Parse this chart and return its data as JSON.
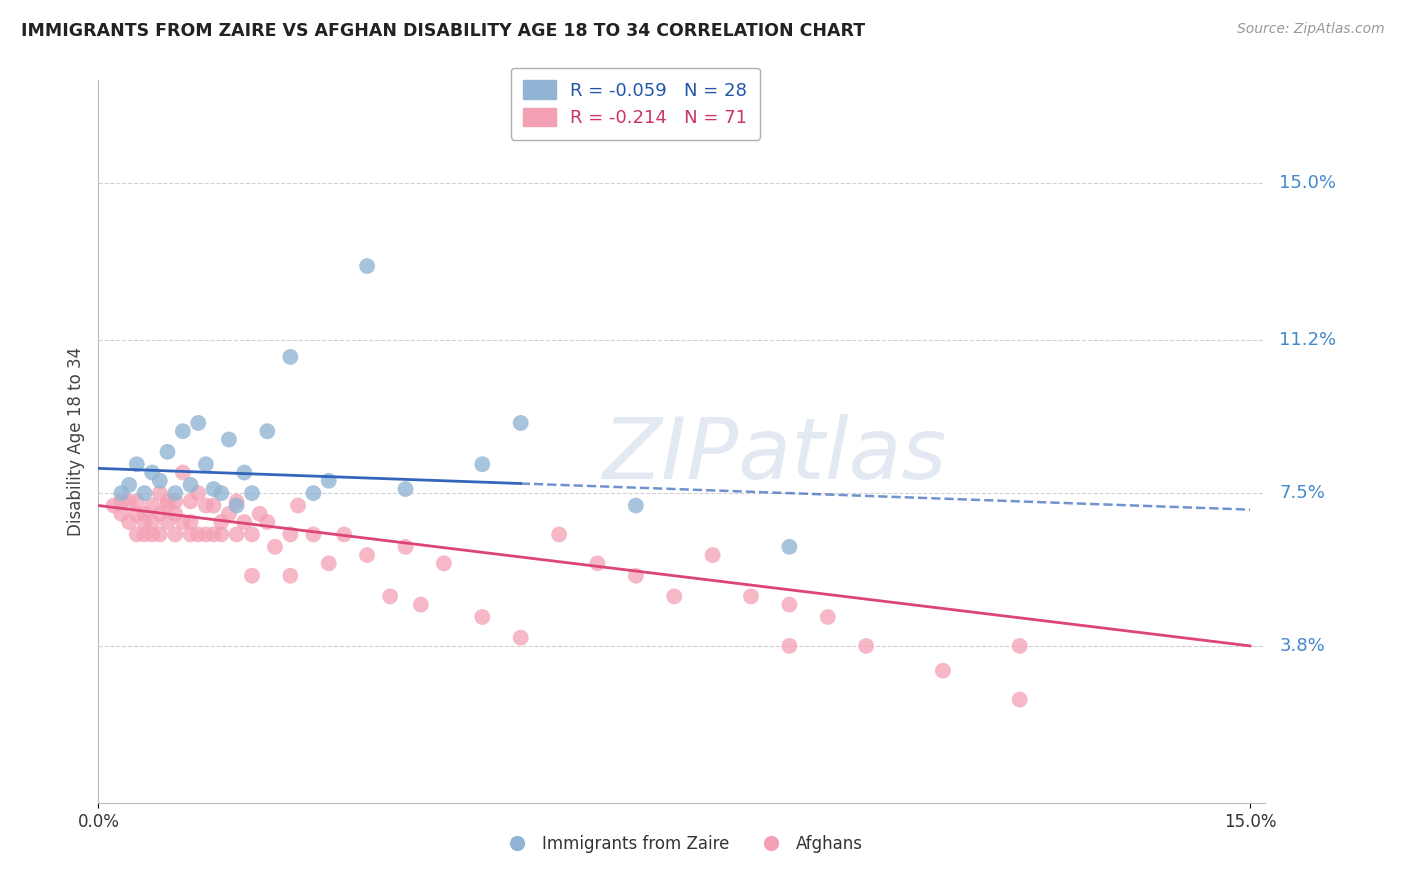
{
  "title": "IMMIGRANTS FROM ZAIRE VS AFGHAN DISABILITY AGE 18 TO 34 CORRELATION CHART",
  "source": "Source: ZipAtlas.com",
  "ylabel": "Disability Age 18 to 34",
  "ytick_values": [
    0.15,
    0.112,
    0.075,
    0.038
  ],
  "ytick_labels": [
    "15.0%",
    "11.2%",
    "7.5%",
    "3.8%"
  ],
  "xlim": [
    0.0,
    0.15
  ],
  "ylim": [
    0.0,
    0.175
  ],
  "zaire_color": "#92b4d4",
  "afghan_color": "#f4a0b4",
  "zaire_line_color": "#3366bb",
  "afghan_line_color": "#dd4477",
  "zaire_line_solid_end": 0.055,
  "watermark_text": "ZIPatlas",
  "zaire_x": [
    0.003,
    0.004,
    0.005,
    0.006,
    0.007,
    0.008,
    0.009,
    0.01,
    0.011,
    0.012,
    0.013,
    0.014,
    0.015,
    0.016,
    0.017,
    0.018,
    0.019,
    0.02,
    0.022,
    0.025,
    0.028,
    0.03,
    0.035,
    0.04,
    0.05,
    0.055,
    0.07,
    0.09
  ],
  "zaire_y": [
    0.075,
    0.077,
    0.082,
    0.075,
    0.08,
    0.078,
    0.085,
    0.075,
    0.09,
    0.077,
    0.092,
    0.082,
    0.076,
    0.075,
    0.088,
    0.072,
    0.08,
    0.075,
    0.09,
    0.108,
    0.075,
    0.078,
    0.13,
    0.076,
    0.082,
    0.092,
    0.072,
    0.062
  ],
  "afghan_x": [
    0.002,
    0.003,
    0.003,
    0.004,
    0.004,
    0.005,
    0.005,
    0.005,
    0.006,
    0.006,
    0.006,
    0.007,
    0.007,
    0.007,
    0.008,
    0.008,
    0.008,
    0.009,
    0.009,
    0.009,
    0.01,
    0.01,
    0.01,
    0.011,
    0.011,
    0.012,
    0.012,
    0.012,
    0.013,
    0.013,
    0.014,
    0.014,
    0.015,
    0.015,
    0.016,
    0.016,
    0.017,
    0.018,
    0.018,
    0.019,
    0.02,
    0.02,
    0.021,
    0.022,
    0.023,
    0.025,
    0.025,
    0.026,
    0.028,
    0.03,
    0.032,
    0.035,
    0.038,
    0.04,
    0.042,
    0.045,
    0.05,
    0.055,
    0.06,
    0.065,
    0.07,
    0.075,
    0.08,
    0.085,
    0.09,
    0.095,
    0.1,
    0.11,
    0.12,
    0.12,
    0.09
  ],
  "afghan_y": [
    0.072,
    0.073,
    0.07,
    0.073,
    0.068,
    0.073,
    0.07,
    0.065,
    0.07,
    0.068,
    0.065,
    0.072,
    0.068,
    0.065,
    0.075,
    0.07,
    0.065,
    0.072,
    0.068,
    0.073,
    0.073,
    0.07,
    0.065,
    0.08,
    0.068,
    0.073,
    0.068,
    0.065,
    0.075,
    0.065,
    0.072,
    0.065,
    0.072,
    0.065,
    0.068,
    0.065,
    0.07,
    0.073,
    0.065,
    0.068,
    0.065,
    0.055,
    0.07,
    0.068,
    0.062,
    0.065,
    0.055,
    0.072,
    0.065,
    0.058,
    0.065,
    0.06,
    0.05,
    0.062,
    0.048,
    0.058,
    0.045,
    0.04,
    0.065,
    0.058,
    0.055,
    0.05,
    0.06,
    0.05,
    0.048,
    0.045,
    0.038,
    0.032,
    0.038,
    0.025,
    0.038
  ],
  "zaire_trend_start_y": 0.081,
  "zaire_trend_end_y": 0.071,
  "afghan_trend_start_y": 0.072,
  "afghan_trend_end_y": 0.038
}
